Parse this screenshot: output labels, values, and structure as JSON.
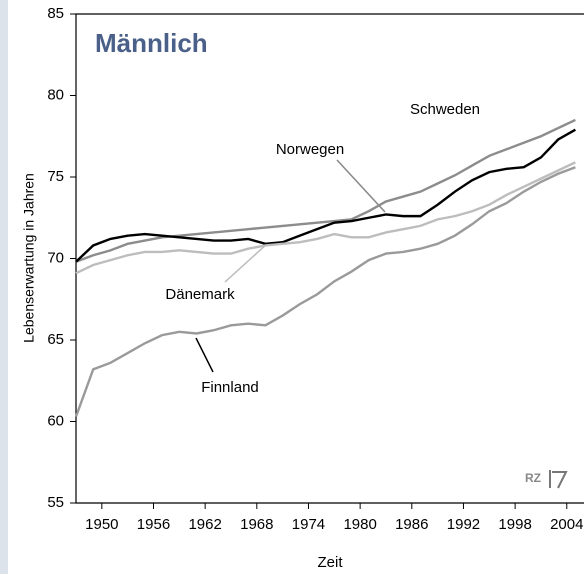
{
  "chart_data": {
    "type": "line",
    "title": "Männlich",
    "x_label": "Zeit",
    "y_label": "Lebenserwartung in Jahren",
    "x": [
      1947,
      1949,
      1951,
      1953,
      1955,
      1957,
      1959,
      1961,
      1963,
      1965,
      1967,
      1969,
      1971,
      1973,
      1975,
      1977,
      1979,
      1981,
      1983,
      1985,
      1987,
      1989,
      1991,
      1993,
      1995,
      1997,
      1999,
      2001,
      2003,
      2005
    ],
    "series": [
      {
        "name": "Schweden",
        "color": "#8c8c8c",
        "values": [
          69.8,
          70.2,
          70.5,
          70.9,
          71.1,
          71.3,
          71.4,
          71.5,
          71.6,
          71.7,
          71.8,
          71.9,
          72.0,
          72.1,
          72.2,
          72.3,
          72.4,
          72.9,
          73.5,
          73.8,
          74.1,
          74.6,
          75.1,
          75.7,
          76.3,
          76.7,
          77.1,
          77.5,
          78.0,
          78.5
        ]
      },
      {
        "name": "Norwegen",
        "color": "#000000",
        "values": [
          69.8,
          70.8,
          71.2,
          71.4,
          71.5,
          71.4,
          71.3,
          71.2,
          71.1,
          71.1,
          71.2,
          70.9,
          71.0,
          71.4,
          71.8,
          72.2,
          72.3,
          72.5,
          72.7,
          72.6,
          72.6,
          73.3,
          74.1,
          74.8,
          75.3,
          75.5,
          75.6,
          76.2,
          77.3,
          77.9
        ]
      },
      {
        "name": "Dänemark",
        "color": "#bdbdbd",
        "values": [
          69.1,
          69.6,
          69.9,
          70.2,
          70.4,
          70.4,
          70.5,
          70.4,
          70.3,
          70.3,
          70.6,
          70.8,
          70.9,
          71.0,
          71.2,
          71.5,
          71.3,
          71.3,
          71.6,
          71.8,
          72.0,
          72.4,
          72.6,
          72.9,
          73.3,
          73.9,
          74.4,
          74.9,
          75.4,
          75.9
        ]
      },
      {
        "name": "Finnland",
        "color": "#9a9a9a",
        "values": [
          60.3,
          63.2,
          63.6,
          64.2,
          64.8,
          65.3,
          65.5,
          65.4,
          65.6,
          65.9,
          66.0,
          65.9,
          66.5,
          67.2,
          67.8,
          68.6,
          69.2,
          69.9,
          70.3,
          70.4,
          70.6,
          70.9,
          71.4,
          72.1,
          72.9,
          73.4,
          74.1,
          74.7,
          75.2,
          75.6
        ]
      }
    ],
    "xlim": [
      1947,
      2006
    ],
    "ylim": [
      55,
      85
    ],
    "xticks": [
      1950,
      1956,
      1962,
      1968,
      1974,
      1980,
      1986,
      1992,
      1998,
      2004
    ],
    "yticks": [
      55,
      60,
      65,
      70,
      75,
      80,
      85
    ],
    "grid": false,
    "logo": "RZ"
  }
}
